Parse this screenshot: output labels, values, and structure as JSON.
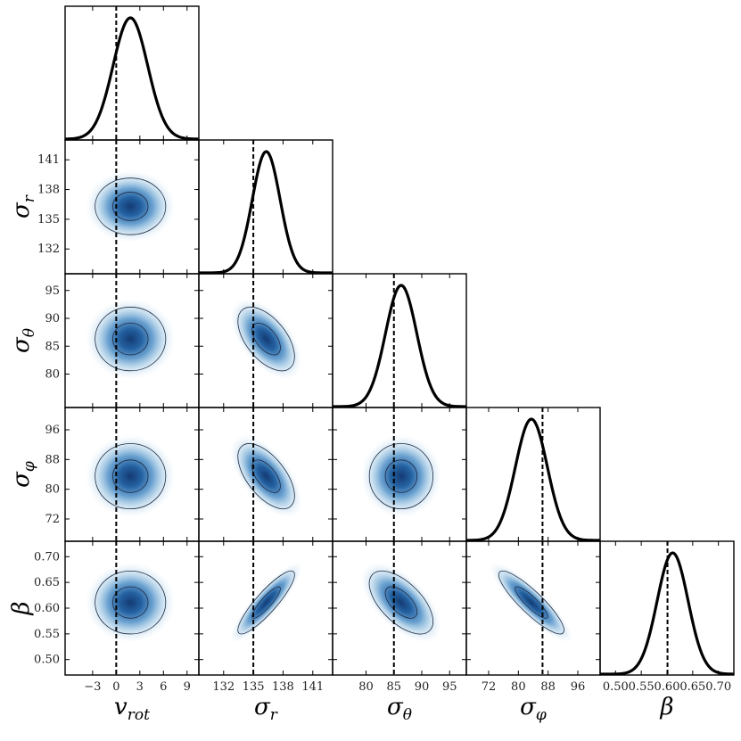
{
  "chart_data": {
    "type": "corner",
    "colormap": "#08519c",
    "curve_color": "#000000",
    "truth_line_style": "dashed",
    "parameters": [
      {
        "key": "v_rot",
        "label": "v",
        "label_sub": "rot",
        "range": [
          -6.5,
          10.5
        ],
        "ticks": [
          -3,
          0,
          3,
          6,
          9
        ],
        "tick_labels": [
          "−3",
          "0",
          "3",
          "6",
          "9"
        ],
        "mean": 1.8,
        "sigma": 2.2,
        "truth": 0
      },
      {
        "key": "sigma_r",
        "label": "σ",
        "label_sub": "r",
        "range": [
          129.5,
          143
        ],
        "ticks": [
          132,
          135,
          138,
          141
        ],
        "tick_labels": [
          "132",
          "135",
          "138",
          "141"
        ],
        "mean": 136.3,
        "sigma": 1.4,
        "truth": 135
      },
      {
        "key": "sigma_theta",
        "label": "σ",
        "label_sub": "θ",
        "range": [
          74,
          98
        ],
        "ticks": [
          80,
          85,
          90,
          95
        ],
        "tick_labels": [
          "80",
          "85",
          "90",
          "95"
        ],
        "mean": 86.3,
        "sigma": 2.8,
        "truth": 85
      },
      {
        "key": "sigma_phi",
        "label": "σ",
        "label_sub": "φ",
        "range": [
          66,
          102
        ],
        "ticks": [
          72,
          80,
          88,
          96
        ],
        "tick_labels": [
          "72",
          "80",
          "88",
          "96"
        ],
        "mean": 83.5,
        "sigma": 4.3,
        "truth": 86.5
      },
      {
        "key": "beta",
        "label": "β",
        "label_sub": "",
        "range": [
          0.47,
          0.73
        ],
        "ticks": [
          0.5,
          0.55,
          0.6,
          0.65,
          0.7
        ],
        "tick_labels": [
          "0.50",
          "0.55",
          "0.60",
          "0.65",
          "0.70"
        ],
        "mean": 0.611,
        "sigma": 0.03,
        "truth": 0.601
      }
    ],
    "correlations": {
      "1_0": 0.0,
      "2_0": 0.0,
      "2_1": -0.55,
      "3_0": 0.0,
      "3_1": -0.6,
      "3_2": 0.0,
      "4_0": 0.0,
      "4_1": 0.88,
      "4_2": -0.6,
      "4_3": -0.88
    },
    "contour_levels_sigma": [
      1,
      2
    ]
  }
}
